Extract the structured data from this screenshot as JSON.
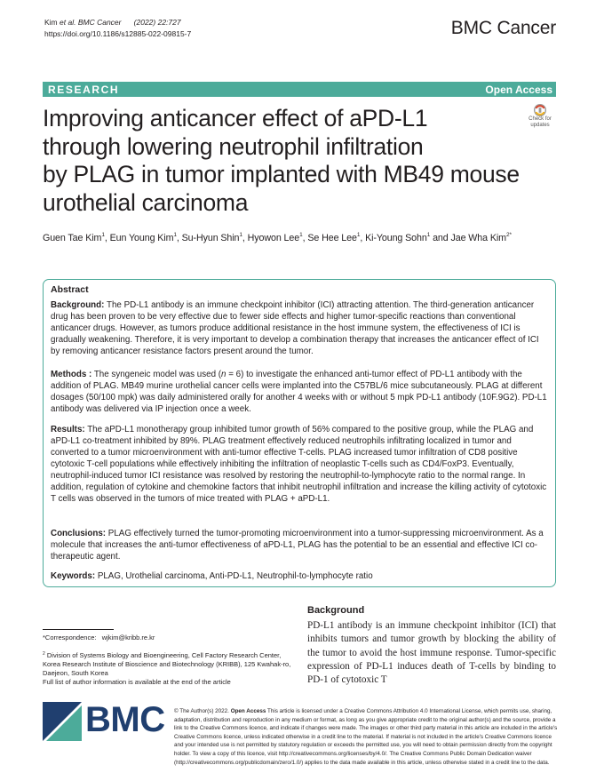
{
  "header": {
    "citation_authors": "Kim",
    "citation_etal": "et al.",
    "citation_journal": "BMC Cancer",
    "citation_volume": "(2022) 22:727",
    "doi": "https://doi.org/10.1186/s12885-022-09815-7",
    "journal_name": "BMC Cancer"
  },
  "banner": {
    "left": "RESEARCH",
    "right": "Open Access"
  },
  "check_updates": {
    "label_line1": "Check for",
    "label_line2": "updates"
  },
  "title_lines": [
    "Improving anticancer effect of aPD-L1",
    "through lowering neutrophil infiltration",
    "by PLAG in tumor implanted with MB49 mouse",
    "urothelial carcinoma"
  ],
  "authors": [
    {
      "name": "Guen Tae Kim",
      "sup": "1"
    },
    {
      "name": "Eun Young Kim",
      "sup": "1"
    },
    {
      "name": "Su-Hyun Shin",
      "sup": "1"
    },
    {
      "name": "Hyowon Lee",
      "sup": "1"
    },
    {
      "name": "Se Hee Lee",
      "sup": "1"
    },
    {
      "name": "Ki-Young Sohn",
      "sup": "1"
    },
    {
      "name": "Jae Wha Kim",
      "sup": "2*"
    }
  ],
  "abstract": {
    "heading": "Abstract",
    "background_label": "Background:",
    "background_text": "The PD-L1 antibody is an immune checkpoint inhibitor (ICI) attracting attention. The third-generation anticancer drug has been proven to be very effective due to fewer side effects and higher tumor-specific reactions than conventional anticancer drugs. However, as tumors produce additional resistance in the host immune system, the effectiveness of ICI is gradually weakening. Therefore, it is very important to develop a combination therapy that increases the anticancer effect of ICI by removing anticancer resistance factors present around the tumor.",
    "methods_label": "Methods :",
    "methods_text_a": "The syngeneic model was used (",
    "methods_n": "n",
    "methods_text_b": " = 6) to investigate the enhanced anti-tumor effect of PD-L1 antibody with the addition of PLAG. MB49 murine urothelial cancer cells were implanted into the C57BL/6 mice subcutaneously. PLAG at different dosages (50/100 mpk) was daily administered orally for another 4 weeks with or without 5 mpk PD-L1 antibody (10F.9G2). PD-L1 antibody was delivered via IP injection once a week.",
    "results_label": "Results:",
    "results_text": "The aPD-L1 monotherapy group inhibited tumor growth of 56% compared to the positive group, while the PLAG and aPD-L1 co-treatment inhibited by 89%. PLAG treatment effectively reduced neutrophils infiltrating localized in tumor and converted to a tumor microenvironment with anti-tumor effective T-cells. PLAG increased tumor infiltration of CD8 positive cytotoxic T-cell populations while effectively inhibiting the infiltration of neoplastic T-cells such as CD4/FoxP3. Eventually, neutrophil-induced tumor ICI resistance was resolved by restoring the neutrophil-to-lymphocyte ratio to the normal range. In addition, regulation of cytokine and chemokine factors that inhibit neutrophil infiltration and increase the killing activity of cytotoxic T cells was observed in the tumors of mice treated with PLAG + aPD-L1.",
    "conclusions_label": "Conclusions:",
    "conclusions_text": "PLAG effectively turned the tumor-promoting microenvironment into a tumor-suppressing microenvironment. As a molecule that increases the anti-tumor effectiveness of aPD-L1, PLAG has the potential to be an essential and effective ICI co-therapeutic agent.",
    "keywords_label": "Keywords:",
    "keywords_text": "PLAG, Urothelial carcinoma, Anti-PD-L1, Neutrophil-to-lymphocyte ratio"
  },
  "footnotes": {
    "correspondence_label": "*Correspondence:",
    "correspondence_email": "wjkim@kribb.re.kr",
    "affiliation_sup": "2",
    "affiliation_text": "Division of Systems Biology and Bioengineering, Cell Factory Research Center, Korea Research Institute of Bioscience and Biotechnology (KRIBB), 125 Kwahak-ro, Daejeon, South Korea",
    "full_list": "Full list of author information is available at the end of the article"
  },
  "body": {
    "background_heading": "Background",
    "background_text": "PD-L1 antibody is an immune checkpoint inhibitor (ICI) that inhibits tumors and tumor growth by blocking the ability of the tumor to avoid the host immune response. Tumor-specific expression of PD-L1 induces death of T-cells by binding to PD-1 of cytotoxic T"
  },
  "logo": {
    "text": "BMC"
  },
  "license": {
    "copyright": "© The Author(s) 2022.",
    "open_access": "Open Access",
    "text": "This article is licensed under a Creative Commons Attribution 4.0 International License, which permits use, sharing, adaptation, distribution and reproduction in any medium or format, as long as you give appropriate credit to the original author(s) and the source, provide a link to the Creative Commons licence, and indicate if changes were made. The images or other third party material in this article are included in the article's Creative Commons licence, unless indicated otherwise in a credit line to the material. If material is not included in the article's Creative Commons licence and your intended use is not permitted by statutory regulation or exceeds the permitted use, you will need to obtain permission directly from the copyright holder. To view a copy of this licence, visit http://creativecommons.org/licenses/by/4.0/. The Creative Commons Public Domain Dedication waiver (http://creativecommons.org/publicdomain/zero/1.0/) applies to the data made available in this article, unless otherwise stated in a credit line to the data."
  },
  "colors": {
    "accent": "#4cab9a",
    "bmc_blue": "#203f6f",
    "bmc_teal": "#4cab9a",
    "text": "#231f20"
  }
}
